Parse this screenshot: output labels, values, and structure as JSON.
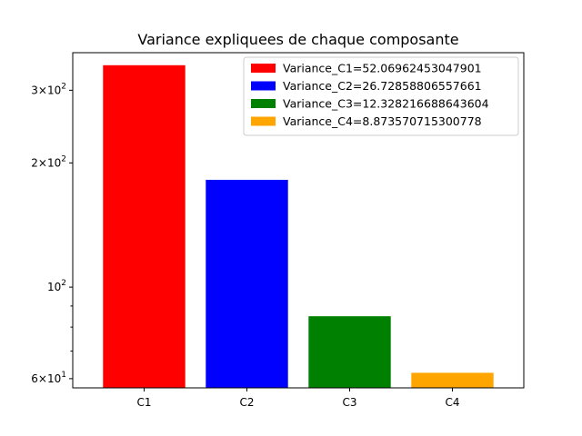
{
  "chart_data": {
    "type": "bar",
    "title": "Variance expliquees de chaque composante",
    "xlabel": "",
    "ylabel": "",
    "yscale": "log",
    "ylim": [
      57,
      370
    ],
    "grid": false,
    "legend_position": "top-right",
    "categories": [
      "C1",
      "C2",
      "C3",
      "C4"
    ],
    "values": [
      345,
      182,
      85,
      62
    ],
    "colors": [
      "#ff0000",
      "#0000ff",
      "#008000",
      "#ffa500"
    ],
    "legend": [
      "Variance_C1=52.06962453047901",
      "Variance_C2=26.72858806557661",
      "Variance_C3=12.328216688643604",
      "Variance_C4=8.873570715300778"
    ],
    "yticks": [
      {
        "value": 60,
        "mantissa": "6",
        "exponent": "1"
      },
      {
        "value": 100,
        "mantissa": "",
        "exponent": "2"
      },
      {
        "value": 200,
        "mantissa": "2",
        "exponent": "2"
      },
      {
        "value": 300,
        "mantissa": "3",
        "exponent": "2"
      }
    ],
    "minor_yticks": [
      70,
      80,
      90
    ]
  }
}
